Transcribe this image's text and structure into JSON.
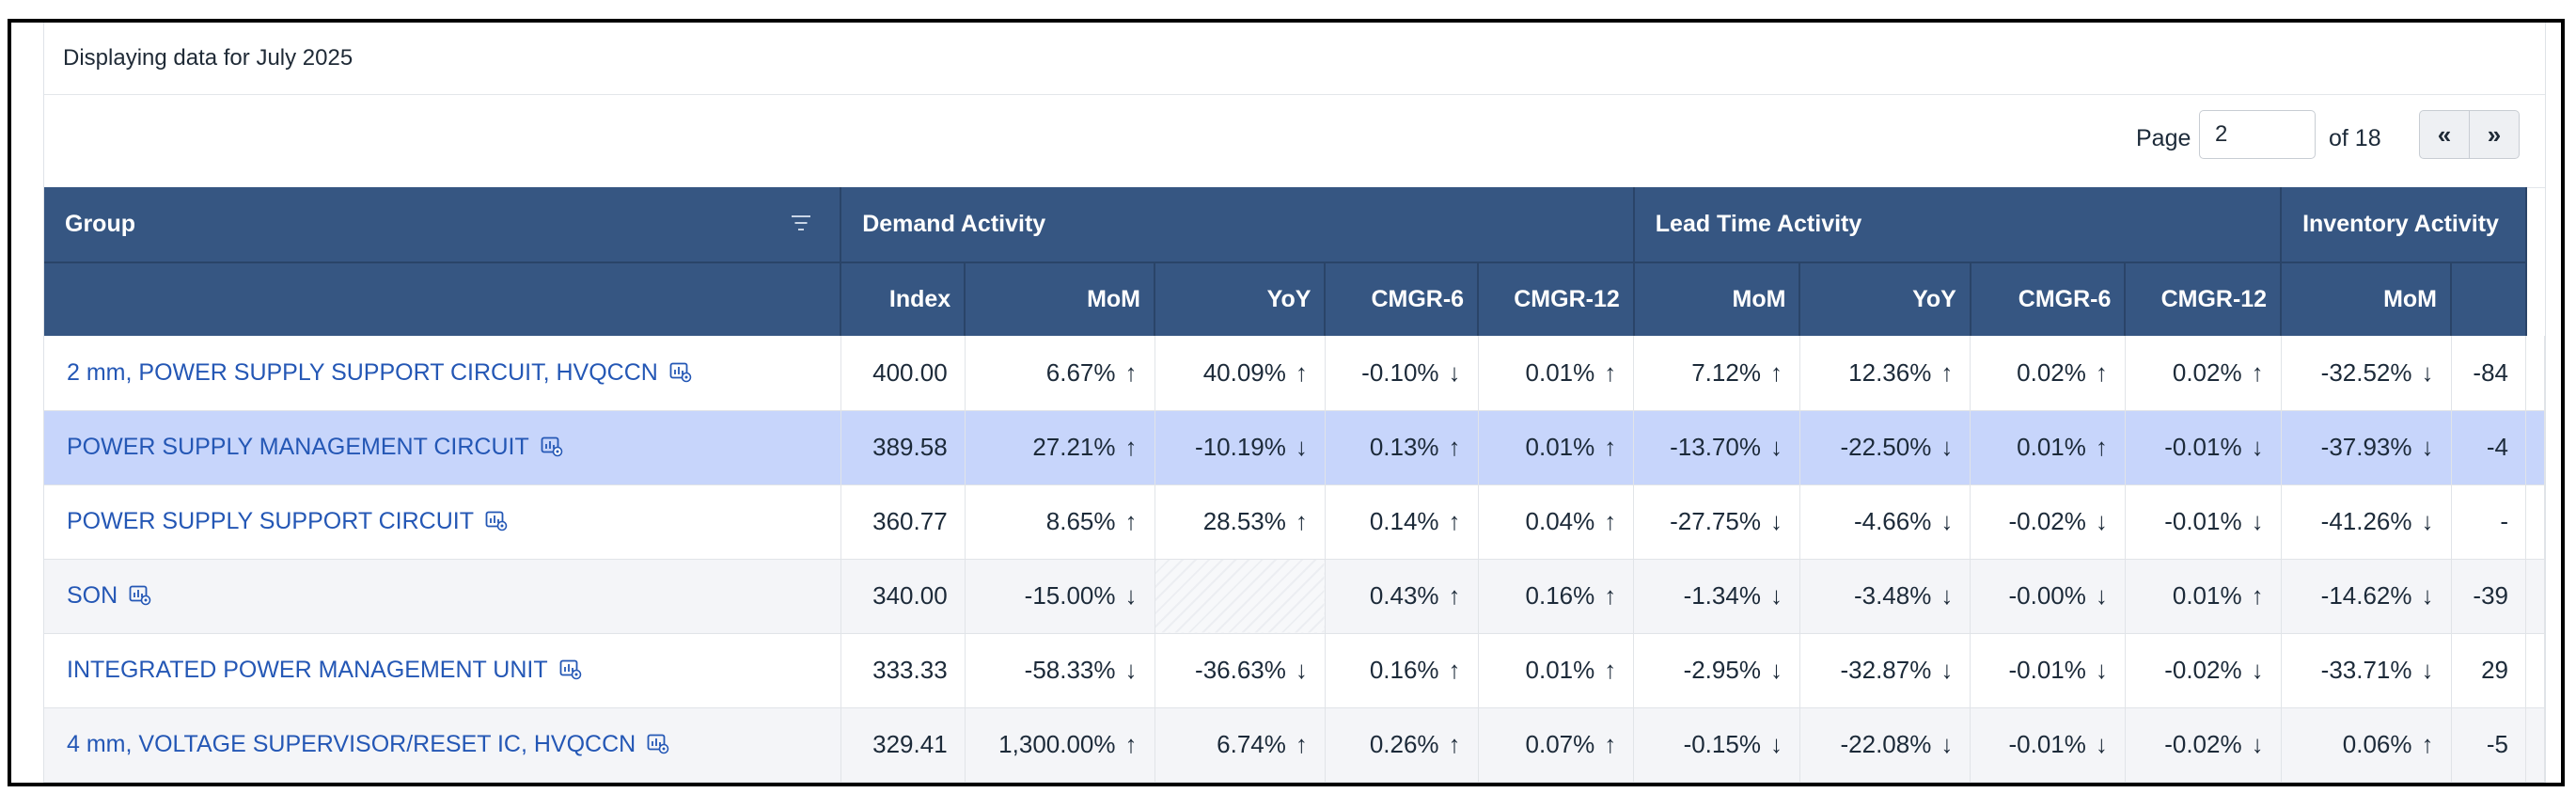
{
  "caption": "Displaying data for July 2025",
  "pager": {
    "page_label": "Page",
    "page_value": "2",
    "of_label": "of 18",
    "prev_label": "«",
    "next_label": "»"
  },
  "header": {
    "group": "Group",
    "demand": "Demand Activity",
    "lead": "Lead Time Activity",
    "inventory": "Inventory Activity",
    "cols": [
      "Index",
      "MoM",
      "YoY",
      "CMGR-6",
      "CMGR-12",
      "MoM",
      "YoY",
      "CMGR-6",
      "CMGR-12",
      "MoM",
      ""
    ]
  },
  "rows": [
    {
      "group": "2 mm, POWER SUPPLY SUPPORT CIRCUIT, HVQCCN",
      "cells": [
        {
          "v": "400.00",
          "a": ""
        },
        {
          "v": "6.67%",
          "a": "↑"
        },
        {
          "v": "40.09%",
          "a": "↑"
        },
        {
          "v": "-0.10%",
          "a": "↓"
        },
        {
          "v": "0.01%",
          "a": "↑"
        },
        {
          "v": "7.12%",
          "a": "↑"
        },
        {
          "v": "12.36%",
          "a": "↑"
        },
        {
          "v": "0.02%",
          "a": "↑"
        },
        {
          "v": "0.02%",
          "a": "↑"
        },
        {
          "v": "-32.52%",
          "a": "↓"
        },
        {
          "v": "-84",
          "a": ""
        }
      ]
    },
    {
      "group": "POWER SUPPLY MANAGEMENT CIRCUIT",
      "cells": [
        {
          "v": "389.58",
          "a": ""
        },
        {
          "v": "27.21%",
          "a": "↑"
        },
        {
          "v": "-10.19%",
          "a": "↓"
        },
        {
          "v": "0.13%",
          "a": "↑"
        },
        {
          "v": "0.01%",
          "a": "↑"
        },
        {
          "v": "-13.70%",
          "a": "↓"
        },
        {
          "v": "-22.50%",
          "a": "↓"
        },
        {
          "v": "0.01%",
          "a": "↑"
        },
        {
          "v": "-0.01%",
          "a": "↓"
        },
        {
          "v": "-37.93%",
          "a": "↓"
        },
        {
          "v": "-4",
          "a": ""
        }
      ]
    },
    {
      "group": "POWER SUPPLY SUPPORT CIRCUIT",
      "cells": [
        {
          "v": "360.77",
          "a": ""
        },
        {
          "v": "8.65%",
          "a": "↑"
        },
        {
          "v": "28.53%",
          "a": "↑"
        },
        {
          "v": "0.14%",
          "a": "↑"
        },
        {
          "v": "0.04%",
          "a": "↑"
        },
        {
          "v": "-27.75%",
          "a": "↓"
        },
        {
          "v": "-4.66%",
          "a": "↓"
        },
        {
          "v": "-0.02%",
          "a": "↓"
        },
        {
          "v": "-0.01%",
          "a": "↓"
        },
        {
          "v": "-41.26%",
          "a": "↓"
        },
        {
          "v": "-",
          "a": ""
        }
      ]
    },
    {
      "group": "SON",
      "cells": [
        {
          "v": "340.00",
          "a": ""
        },
        {
          "v": "-15.00%",
          "a": "↓"
        },
        {
          "v": "",
          "a": "",
          "hatch": true
        },
        {
          "v": "0.43%",
          "a": "↑"
        },
        {
          "v": "0.16%",
          "a": "↑"
        },
        {
          "v": "-1.34%",
          "a": "↓"
        },
        {
          "v": "-3.48%",
          "a": "↓"
        },
        {
          "v": "-0.00%",
          "a": "↓"
        },
        {
          "v": "0.01%",
          "a": "↑"
        },
        {
          "v": "-14.62%",
          "a": "↓"
        },
        {
          "v": "-39",
          "a": ""
        }
      ]
    },
    {
      "group": "INTEGRATED POWER MANAGEMENT UNIT",
      "cells": [
        {
          "v": "333.33",
          "a": ""
        },
        {
          "v": "-58.33%",
          "a": "↓"
        },
        {
          "v": "-36.63%",
          "a": "↓"
        },
        {
          "v": "0.16%",
          "a": "↑"
        },
        {
          "v": "0.01%",
          "a": "↑"
        },
        {
          "v": "-2.95%",
          "a": "↓"
        },
        {
          "v": "-32.87%",
          "a": "↓"
        },
        {
          "v": "-0.01%",
          "a": "↓"
        },
        {
          "v": "-0.02%",
          "a": "↓"
        },
        {
          "v": "-33.71%",
          "a": "↓"
        },
        {
          "v": "29",
          "a": ""
        }
      ]
    },
    {
      "group": "4 mm, VOLTAGE SUPERVISOR/RESET IC, HVQCCN",
      "cells": [
        {
          "v": "329.41",
          "a": ""
        },
        {
          "v": "1,300.00%",
          "a": "↑"
        },
        {
          "v": "6.74%",
          "a": "↑"
        },
        {
          "v": "0.26%",
          "a": "↑"
        },
        {
          "v": "0.07%",
          "a": "↑"
        },
        {
          "v": "-0.15%",
          "a": "↓"
        },
        {
          "v": "-22.08%",
          "a": "↓"
        },
        {
          "v": "-0.01%",
          "a": "↓"
        },
        {
          "v": "-0.02%",
          "a": "↓"
        },
        {
          "v": "0.06%",
          "a": "↑"
        },
        {
          "v": "-5",
          "a": ""
        }
      ]
    }
  ],
  "colors": {
    "header_bg": "#365682",
    "link": "#2457b5",
    "selected_row": "#c7d5fb",
    "alt_row": "#f4f5f8"
  },
  "icons": {
    "row_action": "chart-settings-icon",
    "filter": "filter-icon"
  }
}
